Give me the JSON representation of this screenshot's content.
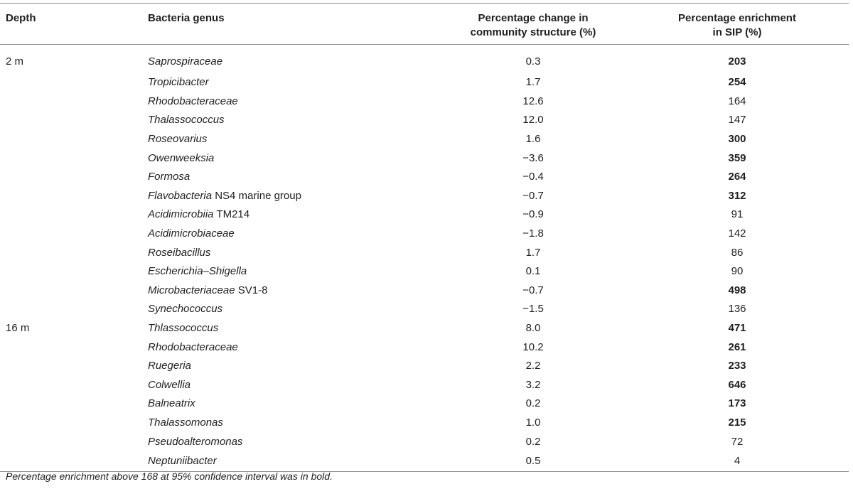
{
  "table": {
    "headers": {
      "depth": "Depth",
      "genus": "Bacteria genus",
      "change_line1": "Percentage change in",
      "change_line2": "community structure (%)",
      "enrich_line1": "Percentage enrichment",
      "enrich_line2": "in SIP (%)"
    },
    "rows": [
      {
        "depth": "2 m",
        "genus": "Saprospiraceae",
        "suffix": "",
        "change": "0.3",
        "enrich": "203",
        "bold": true
      },
      {
        "depth": "",
        "genus": "Tropicibacter",
        "suffix": "",
        "change": "1.7",
        "enrich": "254",
        "bold": true
      },
      {
        "depth": "",
        "genus": "Rhodobacteraceae",
        "suffix": "",
        "change": "12.6",
        "enrich": "164",
        "bold": false
      },
      {
        "depth": "",
        "genus": "Thalassococcus",
        "suffix": "",
        "change": "12.0",
        "enrich": "147",
        "bold": false
      },
      {
        "depth": "",
        "genus": "Roseovarius",
        "suffix": "",
        "change": "1.6",
        "enrich": "300",
        "bold": true
      },
      {
        "depth": "",
        "genus": "Owenweeksia",
        "suffix": "",
        "change": "−3.6",
        "enrich": "359",
        "bold": true
      },
      {
        "depth": "",
        "genus": "Formosa",
        "suffix": "",
        "change": "−0.4",
        "enrich": "264",
        "bold": true
      },
      {
        "depth": "",
        "genus": "Flavobacteria",
        "suffix": " NS4 marine group",
        "change": "−0.7",
        "enrich": "312",
        "bold": true
      },
      {
        "depth": "",
        "genus": "Acidimicrobiia",
        "suffix": " TM214",
        "change": "−0.9",
        "enrich": "91",
        "bold": false
      },
      {
        "depth": "",
        "genus": "Acidimicrobiaceae",
        "suffix": "",
        "change": "−1.8",
        "enrich": "142",
        "bold": false
      },
      {
        "depth": "",
        "genus": "Roseibacillus",
        "suffix": "",
        "change": "1.7",
        "enrich": "86",
        "bold": false
      },
      {
        "depth": "",
        "genus": "Escherichia–Shigella",
        "suffix": "",
        "change": "0.1",
        "enrich": "90",
        "bold": false
      },
      {
        "depth": "",
        "genus": "Microbacteriaceae",
        "suffix": " SV1-8",
        "change": "−0.7",
        "enrich": "498",
        "bold": true
      },
      {
        "depth": "",
        "genus": "Synechococcus",
        "suffix": "",
        "change": "−1.5",
        "enrich": "136",
        "bold": false
      },
      {
        "depth": "16 m",
        "genus": "Thlassococcus",
        "suffix": "",
        "change": "8.0",
        "enrich": "471",
        "bold": true
      },
      {
        "depth": "",
        "genus": "Rhodobacteraceae",
        "suffix": "",
        "change": "10.2",
        "enrich": "261",
        "bold": true
      },
      {
        "depth": "",
        "genus": "Ruegeria",
        "suffix": "",
        "change": "2.2",
        "enrich": "233",
        "bold": true
      },
      {
        "depth": "",
        "genus": "Colwellia",
        "suffix": "",
        "change": "3.2",
        "enrich": "646",
        "bold": true
      },
      {
        "depth": "",
        "genus": "Balneatrix",
        "suffix": "",
        "change": "0.2",
        "enrich": "173",
        "bold": true
      },
      {
        "depth": "",
        "genus": "Thalassomonas",
        "suffix": "",
        "change": "1.0",
        "enrich": "215",
        "bold": true
      },
      {
        "depth": "",
        "genus": "Pseudoalteromonas",
        "suffix": "",
        "change": "0.2",
        "enrich": "72",
        "bold": false
      },
      {
        "depth": "",
        "genus": "Neptuniibacter",
        "suffix": "",
        "change": "0.5",
        "enrich": "4",
        "bold": false
      }
    ]
  },
  "footnote": "Percentage enrichment above 168 at 95% confidence interval was in bold."
}
